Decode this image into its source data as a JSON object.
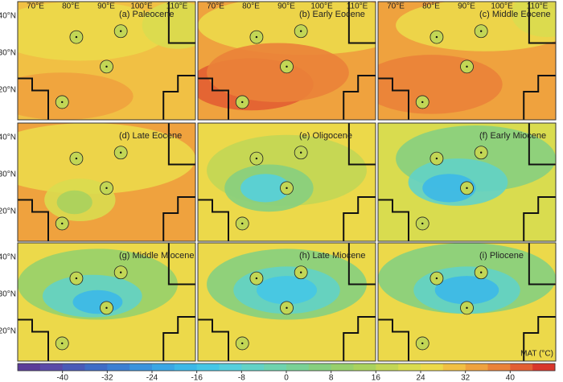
{
  "axes": {
    "lon_ticks": [
      "70°E",
      "80°E",
      "90°E",
      "100°E",
      "110°E"
    ],
    "lat_ticks": [
      "40°N",
      "30°N",
      "20°N"
    ]
  },
  "panels": [
    {
      "title": "(a) Paleocene"
    },
    {
      "title": "(b) Early Eocene"
    },
    {
      "title": "(c) Middle Eocene"
    },
    {
      "title": "(d) Late Eocene"
    },
    {
      "title": "(e) Oligocene"
    },
    {
      "title": "(f) Early Miocene"
    },
    {
      "title": "(g) Middle Miocene"
    },
    {
      "title": "(h) Late Miocene"
    },
    {
      "title": "(i) Pliocene"
    }
  ],
  "colorbar": {
    "label": "MAT (°C)",
    "range": [
      -48,
      48
    ],
    "ticks": [
      -40,
      -32,
      -24,
      -16,
      -8,
      0,
      8,
      16,
      24,
      32,
      40
    ],
    "colors": [
      "#5b3c99",
      "#5a4aa8",
      "#4a5ab8",
      "#3f6cc6",
      "#3b7fd2",
      "#3a93dc",
      "#3aa6e4",
      "#3cb8e8",
      "#45c6e6",
      "#55cfdc",
      "#62d2c6",
      "#6ed3ae",
      "#79d196",
      "#86cf7f",
      "#97d06c",
      "#a9d25e",
      "#c2d655",
      "#d9dc4f",
      "#ecd94a",
      "#f1c044",
      "#efa23e",
      "#ea8238",
      "#e25e32",
      "#d8362b"
    ]
  }
}
